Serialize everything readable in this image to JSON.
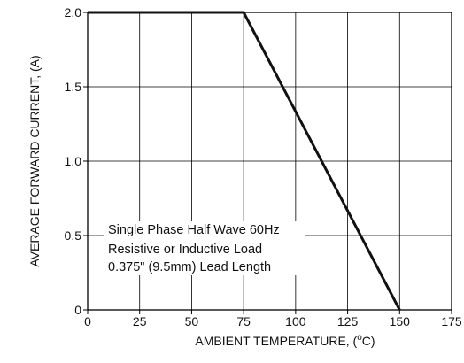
{
  "chart_data": {
    "type": "line",
    "title": "",
    "xlabel": "AMBIENT TEMPERATURE, (",
    "xlabel_unit_sup": "o",
    "xlabel_unit_tail": "C)",
    "ylabel": "AVERAGE FORWARD CURRENT, (A)",
    "xlim": [
      0,
      175
    ],
    "ylim": [
      0,
      2.0
    ],
    "x_ticks": [
      0,
      25,
      50,
      75,
      100,
      125,
      150,
      175
    ],
    "x_tick_labels": [
      "0",
      "25",
      "50",
      "75",
      "100",
      "125",
      "150",
      "175"
    ],
    "y_ticks": [
      0,
      0.5,
      1.0,
      1.5,
      2.0
    ],
    "y_tick_labels": [
      "0",
      "0.5",
      "1.0",
      "1.5",
      "2.0"
    ],
    "grid": true,
    "series": [
      {
        "x": [
          0,
          75,
          150
        ],
        "y": [
          2.0,
          2.0,
          0
        ]
      }
    ],
    "annotations": [
      "Single Phase Half Wave 60Hz",
      "Resistive or Inductive Load",
      "0.375\" (9.5mm) Lead Length"
    ]
  }
}
